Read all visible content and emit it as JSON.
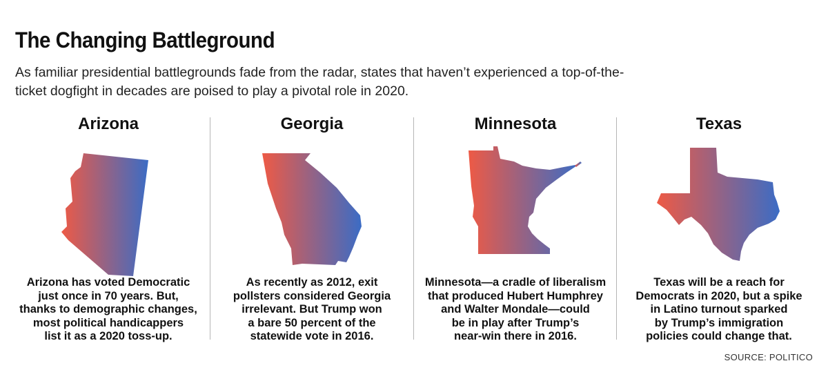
{
  "header": {
    "title": "The Changing Battleground",
    "subtitle": "As familiar presidential battlegrounds fade from the radar, states that haven’t experienced a top-of-the-ticket dogfight in decades are poised to play a pivotal role in 2020."
  },
  "gradient": {
    "left_color": "#ee5a45",
    "right_color": "#3b6cc5"
  },
  "states": [
    {
      "name": "Arizona",
      "text": "Arizona has voted Democratic\njust once in 70 years. But,\nthanks to demographic changes,\nmost political handicappers\nlist it as a 2020 toss-up."
    },
    {
      "name": "Georgia",
      "text": "As recently as 2012, exit\npollsters considered Georgia\nirrelevant. But Trump won\na bare 50 percent of the\nstatewide vote in 2016."
    },
    {
      "name": "Minnesota",
      "text": "Minnesota—a cradle of liberalism\nthat produced Hubert Humphrey\nand Walter Mondale—could\nbe in play after Trump’s\nnear-win there in 2016."
    },
    {
      "name": "Texas",
      "text": "Texas will be a reach for\nDemocrats in 2020, but a spike\nin Latino turnout sparked\nby Trump’s immigration\npolicies could change that."
    }
  ],
  "source": "SOURCE: POLITICO"
}
